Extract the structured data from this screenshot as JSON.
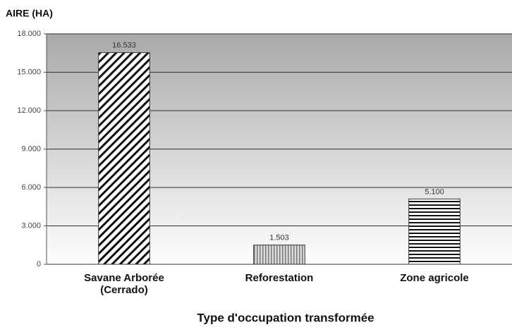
{
  "chart_data": {
    "type": "bar",
    "y_label": "AIRE (HA)",
    "x_label": "Type d'occupation transformée",
    "categories": [
      "Savane Arborée\n(Cerrado)",
      "Reforestation",
      "Zone agricole"
    ],
    "values": [
      16533,
      1503,
      5100
    ],
    "value_labels": [
      "16.533",
      "1.503",
      "5.100"
    ],
    "patterns": [
      "diagonal",
      "vertical",
      "horizontal"
    ],
    "ylim": [
      0,
      18000
    ],
    "yticks": [
      0,
      {
        "value": 3000,
        "label": "3.000"
      },
      {
        "value": 6000,
        "label": "6.000"
      },
      {
        "value": 9000,
        "label": "9.000"
      },
      {
        "value": 12000,
        "label": "12.000"
      },
      {
        "value": 15000,
        "label": "15.000"
      },
      {
        "value": 18000,
        "label": "18.000"
      }
    ],
    "grid": true
  }
}
